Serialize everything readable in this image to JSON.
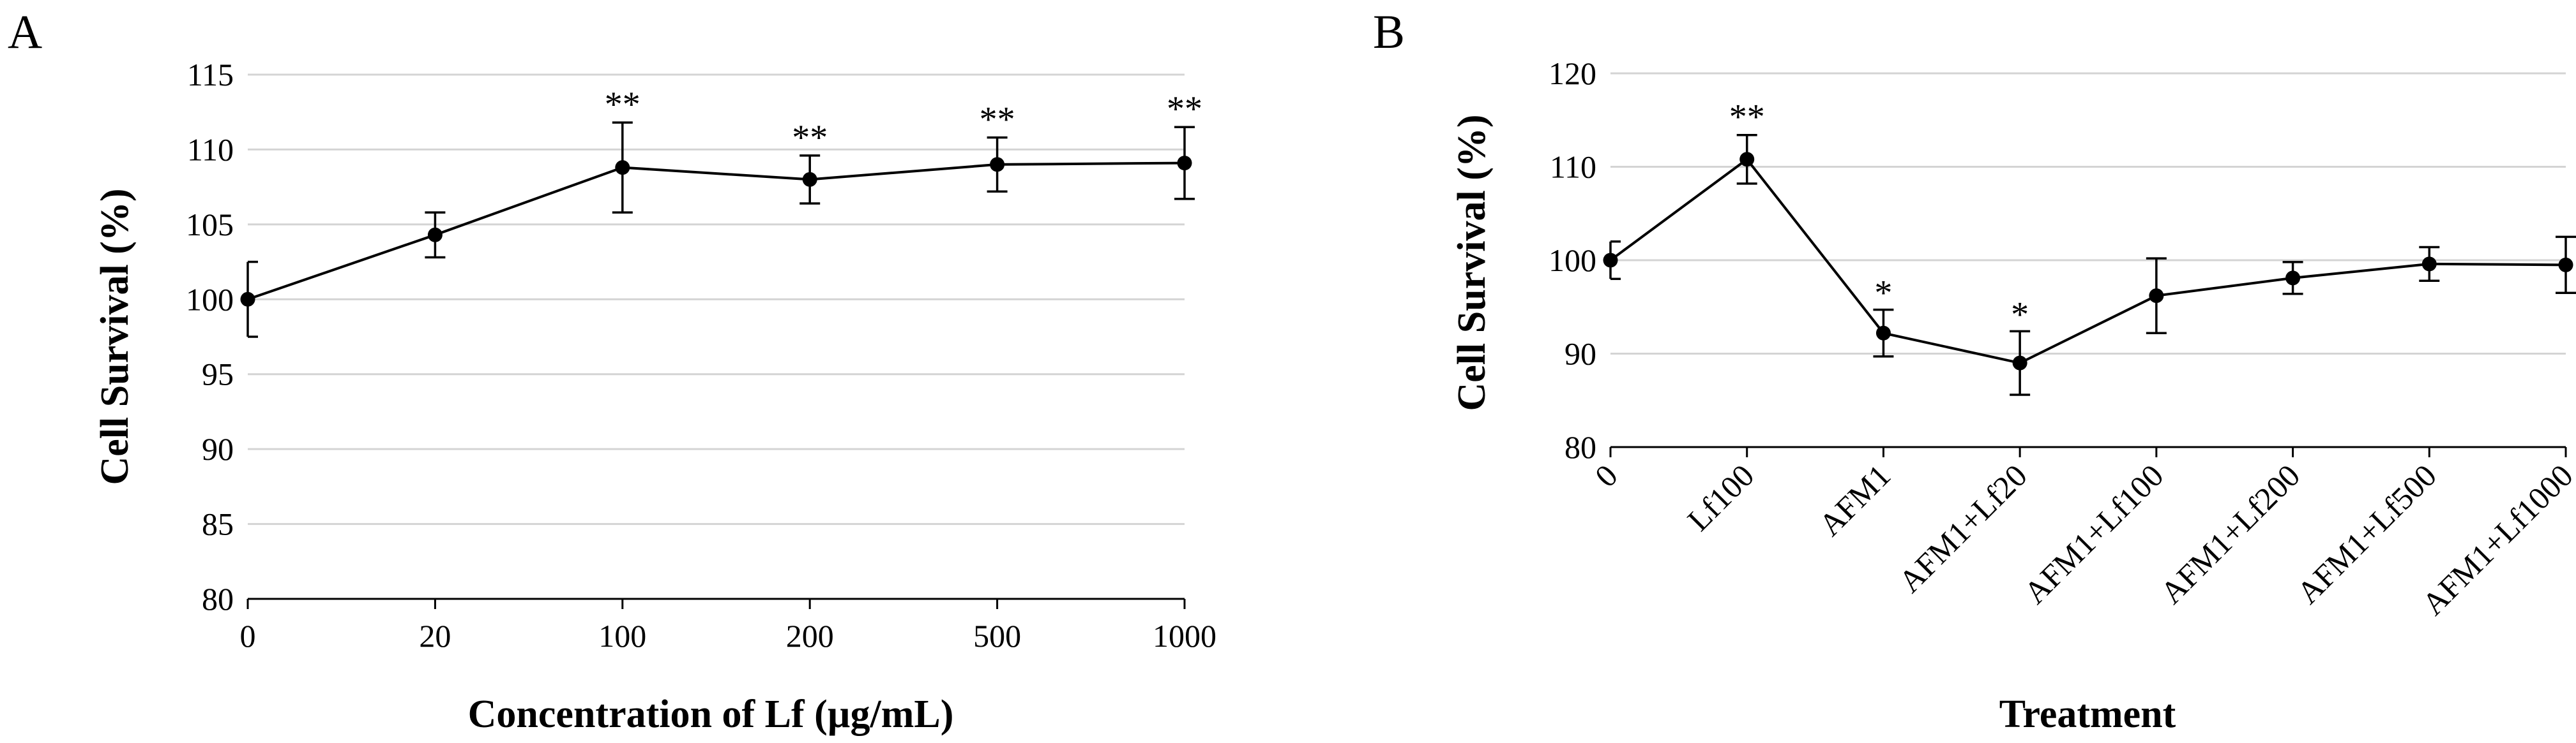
{
  "chart_data": [
    {
      "panel": "A",
      "type": "line",
      "xlabel": "Concentration of Lf (µg/mL)",
      "ylabel": "Cell Survival  (%)",
      "ylim": [
        80,
        115
      ],
      "yticks": [
        80,
        85,
        90,
        95,
        100,
        105,
        110,
        115
      ],
      "grid": true,
      "categories": [
        "0",
        "20",
        "100",
        "200",
        "500",
        "1000"
      ],
      "values": [
        100,
        104.3,
        108.8,
        108.0,
        109.0,
        109.1
      ],
      "errors": [
        2.5,
        1.5,
        3.0,
        1.6,
        1.8,
        2.4
      ],
      "significance": [
        "",
        "",
        "**",
        "**",
        "**",
        "**"
      ]
    },
    {
      "panel": "B",
      "type": "line",
      "xlabel": "Treatment",
      "ylabel": "Cell Survival  (%)",
      "ylim": [
        80,
        120
      ],
      "yticks": [
        80,
        90,
        100,
        110,
        120
      ],
      "grid": true,
      "categories": [
        "0",
        "Lf100",
        "AFM1",
        "AFM1+Lf20",
        "AFM1+Lf100",
        "AFM1+Lf200",
        "AFM1+Lf500",
        "AFM1+Lf1000"
      ],
      "values": [
        100,
        110.8,
        92.2,
        89.0,
        96.2,
        98.1,
        99.6,
        99.5
      ],
      "errors": [
        2.0,
        2.6,
        2.5,
        3.4,
        4.0,
        1.7,
        1.8,
        3.0
      ],
      "significance": [
        "",
        "**",
        "*",
        "*",
        "",
        "",
        "",
        ""
      ]
    }
  ]
}
